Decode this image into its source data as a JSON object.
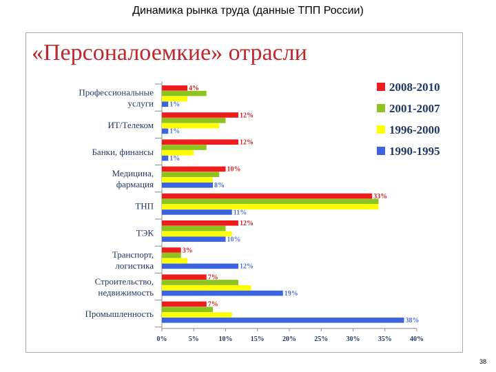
{
  "slide": {
    "title": "Динамика рынка труда (данные ТПП России)",
    "page_number": "38"
  },
  "chart_data": {
    "type": "bar",
    "orientation": "horizontal",
    "title": "«Персоналоемкие» отрасли",
    "xlabel": "",
    "ylabel": "",
    "xlim": [
      0,
      40
    ],
    "x_ticks": [
      "0%",
      "5%",
      "10%",
      "15%",
      "20%",
      "25%",
      "30%",
      "35%",
      "40%"
    ],
    "grid": false,
    "legend_position": "right",
    "categories": [
      [
        "Профессиональные",
        "услуги"
      ],
      [
        "ИТ/Телеком"
      ],
      [
        "Банки, финансы"
      ],
      [
        "Медицина,",
        "фармация"
      ],
      [
        "ТНП"
      ],
      [
        "ТЭК"
      ],
      [
        "Транспорт,",
        "логистика"
      ],
      [
        "Строительство,",
        "недвижимость"
      ],
      [
        "Промышленность"
      ]
    ],
    "series": [
      {
        "name": "2008-2010",
        "color": "#ee1c1c",
        "label_color": "#d42020",
        "values": [
          4,
          12,
          12,
          10,
          33,
          12,
          3,
          7,
          7
        ],
        "labels": [
          "4%",
          "12%",
          "12%",
          "10%",
          "33%",
          "12%",
          "3%",
          "7%",
          "7%"
        ]
      },
      {
        "name": "2001-2007",
        "color": "#8dc21f",
        "values": [
          7,
          10,
          7,
          9,
          34,
          10,
          3,
          12,
          8
        ]
      },
      {
        "name": "1996-2000",
        "color": "#ffff00",
        "values": [
          4,
          9,
          5,
          8,
          34,
          11,
          4,
          14,
          11
        ]
      },
      {
        "name": "1990-1995",
        "color": "#3c64e0",
        "label_color": "#4f72d8",
        "values": [
          1,
          1,
          1,
          8,
          11,
          10,
          12,
          19,
          38
        ],
        "labels": [
          "1%",
          "1%",
          "1%",
          "8%",
          "11%",
          "10%",
          "12%",
          "19%",
          "38%"
        ]
      }
    ],
    "legend_order": [
      "2008-2010",
      "2001-2007",
      "1996-2000",
      "1990-1995"
    ]
  }
}
